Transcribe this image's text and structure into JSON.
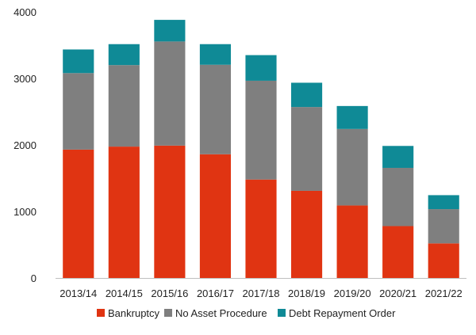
{
  "chart_data": {
    "type": "bar",
    "stacked": true,
    "categories": [
      "2013/14",
      "2014/15",
      "2015/16",
      "2016/17",
      "2017/18",
      "2018/19",
      "2019/20",
      "2020/21",
      "2021/22"
    ],
    "series": [
      {
        "name": "Bankruptcy",
        "color": "#e03412",
        "values": [
          1930,
          1975,
          1990,
          1860,
          1480,
          1310,
          1090,
          780,
          520
        ]
      },
      {
        "name": "No Asset Procedure",
        "color": "#7f7f7f",
        "values": [
          1150,
          1225,
          1565,
          1345,
          1485,
          1260,
          1150,
          875,
          515
        ]
      },
      {
        "name": "Debt Repayment Order",
        "color": "#0f8a96",
        "values": [
          355,
          315,
          325,
          310,
          385,
          365,
          345,
          330,
          210
        ]
      }
    ],
    "title": "",
    "xlabel": "",
    "ylabel": "",
    "ylim": [
      0,
      4000
    ],
    "yticks": [
      0,
      1000,
      2000,
      3000,
      4000
    ],
    "grid": false,
    "legend_position": "bottom"
  }
}
